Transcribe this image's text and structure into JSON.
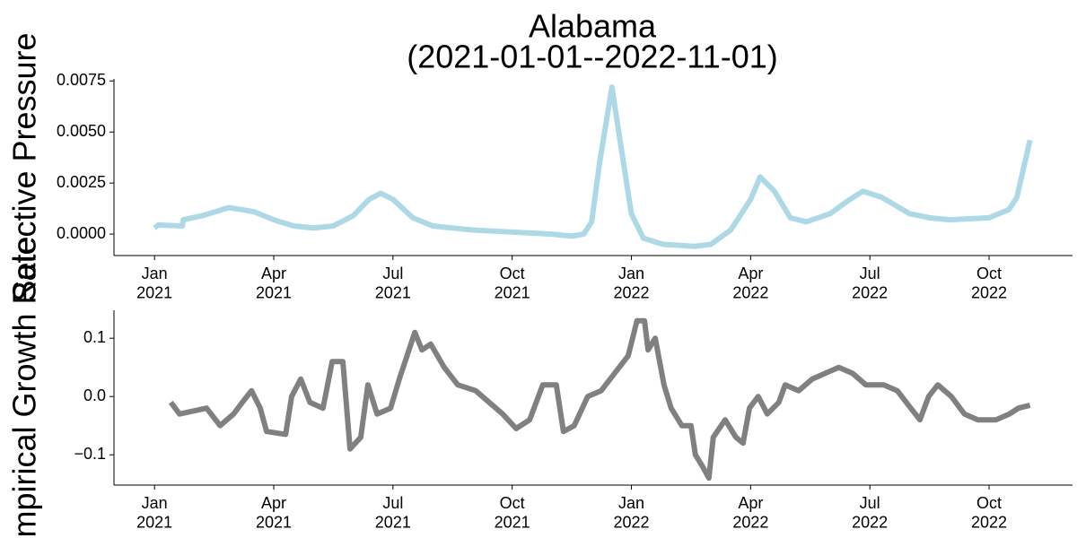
{
  "chart_data": [
    {
      "type": "line",
      "title": "Alabama",
      "subtitle": "(2021-01-01--2022-11-01)",
      "ylabel": "Selective Pressure",
      "color": "#add8e6",
      "x": [
        0,
        0.1,
        0.7,
        0.72,
        1.2,
        1.87,
        2.5,
        3.0,
        3.5,
        4.0,
        4.5,
        5.0,
        5.4,
        5.69,
        6.0,
        6.5,
        7.0,
        8,
        9,
        10,
        10.5,
        10.8,
        11.0,
        11.2,
        11.51,
        11.8,
        12.0,
        12.3,
        12.8,
        13.6,
        14.0,
        14.5,
        15.0,
        15.24,
        15.6,
        16.0,
        16.4,
        17.0,
        17.5,
        17.83,
        18.3,
        19.0,
        19.5,
        20.0,
        21.0,
        21.5,
        21.7,
        22.03
      ],
      "values": [
        0.0003,
        0.00045,
        0.0004,
        0.0007,
        0.0009,
        0.0013,
        0.0011,
        0.0007,
        0.0004,
        0.0003,
        0.0004,
        0.0009,
        0.0017,
        0.002,
        0.0017,
        0.0008,
        0.0004,
        0.0002,
        0.0001,
        0.0,
        -0.0001,
        0.0,
        0.0006,
        0.0035,
        0.0072,
        0.0035,
        0.001,
        -0.0002,
        -0.0005,
        -0.0006,
        -0.0005,
        0.0002,
        0.0017,
        0.0028,
        0.0021,
        0.0008,
        0.0006,
        0.001,
        0.0017,
        0.0021,
        0.0018,
        0.001,
        0.0008,
        0.0007,
        0.0008,
        0.0012,
        0.0018,
        0.0046
      ],
      "xlim": [
        -1.02,
        23.1
      ],
      "xticks": [
        {
          "value": 0,
          "label": "Jan\n2021"
        },
        {
          "value": 3,
          "label": "Apr\n2021"
        },
        {
          "value": 6,
          "label": "Jul\n2021"
        },
        {
          "value": 9,
          "label": "Oct\n2021"
        },
        {
          "value": 12,
          "label": "Jan\n2022"
        },
        {
          "value": 15,
          "label": "Apr\n2022"
        },
        {
          "value": 18,
          "label": "Jul\n2022"
        },
        {
          "value": 21,
          "label": "Oct\n2022"
        }
      ],
      "ylim": [
        -0.00105,
        0.0076
      ],
      "yticks": [
        {
          "value": 0,
          "label": "0.0000"
        },
        0.0025,
        {
          "value": 0.005,
          "label": "0.0050"
        },
        0.0075
      ]
    },
    {
      "type": "line",
      "ylabel": "Empirical Growth Rate",
      "color": "#808080",
      "x": [
        0.41,
        0.63,
        1.31,
        1.65,
        1.99,
        2.21,
        2.44,
        2.66,
        2.82,
        3.3,
        3.45,
        3.68,
        3.91,
        4.24,
        4.47,
        4.74,
        4.92,
        5.19,
        5.37,
        5.6,
        5.94,
        6.16,
        6.55,
        6.73,
        6.95,
        7.29,
        7.63,
        8.08,
        8.42,
        8.76,
        9.1,
        9.44,
        9.77,
        10.11,
        10.29,
        10.56,
        10.9,
        11.24,
        11.58,
        11.92,
        12.14,
        12.33,
        12.42,
        12.6,
        12.82,
        13.0,
        13.27,
        13.5,
        13.61,
        13.79,
        13.95,
        14.06,
        14.36,
        14.63,
        14.81,
        14.97,
        15.19,
        15.42,
        15.71,
        15.87,
        16.21,
        16.55,
        16.88,
        17.22,
        17.56,
        17.9,
        18.35,
        18.69,
        19.03,
        19.26,
        19.48,
        19.71,
        20.05,
        20.38,
        20.72,
        21.17,
        21.51,
        21.74,
        22.03
      ],
      "values": [
        -0.01,
        -0.03,
        -0.02,
        -0.05,
        -0.03,
        -0.01,
        0.01,
        -0.02,
        -0.06,
        -0.065,
        0.0,
        0.03,
        -0.01,
        -0.02,
        0.06,
        0.06,
        -0.09,
        -0.07,
        0.02,
        -0.03,
        -0.02,
        0.03,
        0.11,
        0.08,
        0.09,
        0.05,
        0.02,
        0.01,
        -0.01,
        -0.03,
        -0.055,
        -0.04,
        0.02,
        0.02,
        -0.06,
        -0.05,
        0.0,
        0.01,
        0.04,
        0.07,
        0.13,
        0.13,
        0.08,
        0.1,
        0.02,
        -0.02,
        -0.05,
        -0.05,
        -0.1,
        -0.12,
        -0.14,
        -0.07,
        -0.04,
        -0.07,
        -0.08,
        -0.02,
        0.0,
        -0.03,
        -0.01,
        0.02,
        0.01,
        0.03,
        0.04,
        0.05,
        0.04,
        0.02,
        0.02,
        0.01,
        -0.02,
        -0.04,
        0.0,
        0.02,
        0.0,
        -0.03,
        -0.04,
        -0.04,
        -0.03,
        -0.02,
        -0.015
      ],
      "xlim": [
        -1.02,
        23.1
      ],
      "xticks": [
        {
          "value": 0,
          "label": "Jan\n2021"
        },
        {
          "value": 3,
          "label": "Apr\n2021"
        },
        {
          "value": 6,
          "label": "Jul\n2021"
        },
        {
          "value": 9,
          "label": "Oct\n2021"
        },
        {
          "value": 12,
          "label": "Jan\n2022"
        },
        {
          "value": 15,
          "label": "Apr\n2022"
        },
        {
          "value": 18,
          "label": "Jul\n2022"
        },
        {
          "value": 21,
          "label": "Oct\n2022"
        }
      ],
      "ylim": [
        -0.152,
        0.148
      ],
      "yticks": [
        {
          "value": -0.1,
          "label": "−0.1"
        },
        {
          "value": 0,
          "label": "0.0"
        },
        0.1
      ]
    }
  ]
}
